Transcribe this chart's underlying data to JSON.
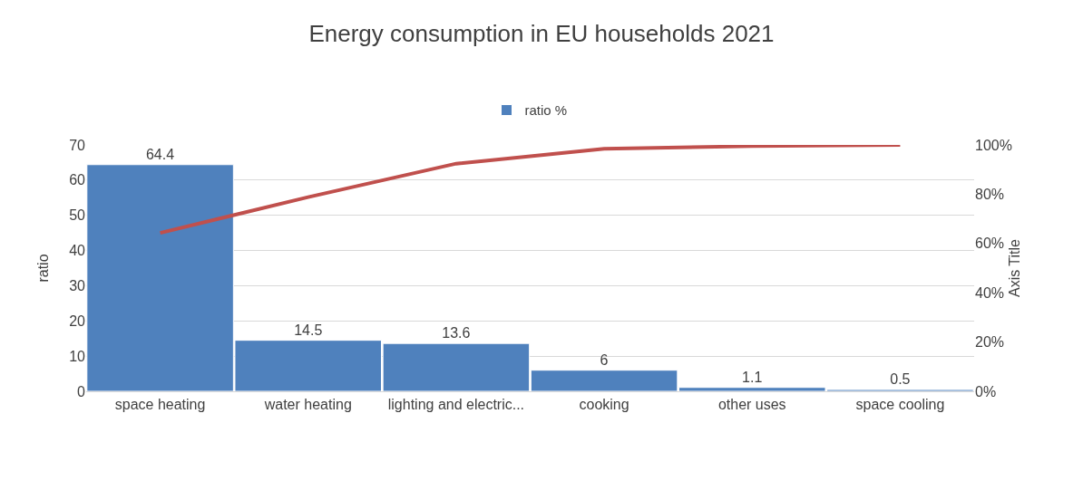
{
  "chart_data": {
    "type": "bar",
    "title": "Energy consumption in EU households 2021",
    "categories": [
      "space heating",
      "water heating",
      "lighting and electric...",
      "cooking",
      "other uses",
      "space cooling"
    ],
    "series": [
      {
        "name": "ratio %",
        "color": "#4f81bd",
        "values": [
          64.4,
          14.5,
          13.6,
          6,
          1.1,
          0.5
        ],
        "value_labels": [
          "64.4",
          "14.5",
          "13.6",
          "6",
          "1.1",
          "0.5"
        ]
      },
      {
        "type": "line",
        "axis": "y2",
        "color": "#c0504d",
        "values": [
          64.3,
          78.8,
          92.4,
          98.4,
          99.5,
          100
        ]
      }
    ],
    "ylabel": "ratio",
    "y2label": "Axis Title",
    "ylim": [
      0,
      70
    ],
    "yticks": [
      0,
      10,
      20,
      30,
      40,
      50,
      60,
      70
    ],
    "y2lim": [
      0,
      100
    ],
    "y2ticks": [
      {
        "value": 0,
        "label": "0%"
      },
      {
        "value": 20,
        "label": "20%"
      },
      {
        "value": 40,
        "label": "40%"
      },
      {
        "value": 60,
        "label": "60%"
      },
      {
        "value": 80,
        "label": "80%"
      },
      {
        "value": 100,
        "label": "100%"
      }
    ],
    "grid": "y",
    "legend": "top"
  }
}
